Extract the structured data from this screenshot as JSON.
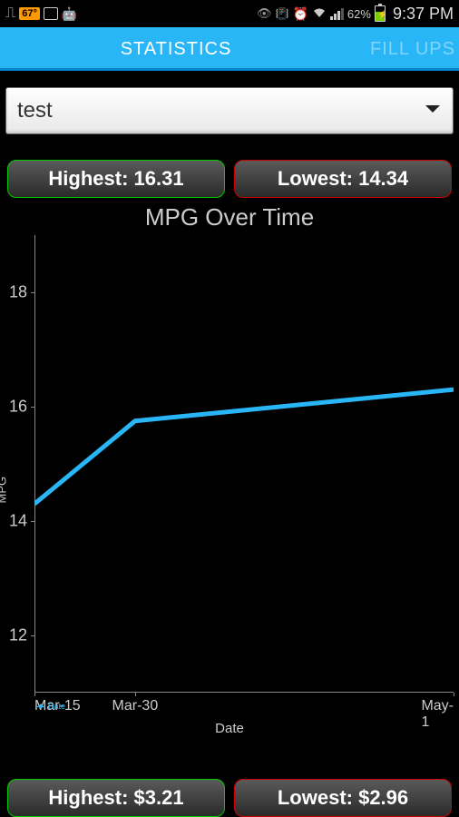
{
  "status": {
    "temp": "67°",
    "battery_pct": "62%",
    "time": "9:37 PM"
  },
  "tabs": {
    "active": "STATISTICS",
    "secondary": "FILL UPS"
  },
  "dropdown": {
    "selected": "test"
  },
  "mpg_stats": {
    "high_label": "Highest: 16.31",
    "low_label": "Lowest: 14.34"
  },
  "price_stats": {
    "high_label": "Highest: $3.21",
    "low_label": "Lowest: $2.96"
  },
  "chart": {
    "type": "line",
    "title": "MPG Over Time",
    "ylabel": "MPG",
    "xlabel": "Date",
    "legend_label": "Date",
    "ylim": [
      11,
      19
    ],
    "yticks": [
      12,
      14,
      16,
      18
    ],
    "xticks": [
      "Mar-15",
      "Mar-30",
      "May-1"
    ],
    "xtick_positions": [
      0.0,
      0.24,
      1.0
    ],
    "points": [
      {
        "x": 0.0,
        "y": 14.3
      },
      {
        "x": 0.24,
        "y": 15.75
      },
      {
        "x": 1.0,
        "y": 16.3
      }
    ],
    "line_color": "#29b6f6",
    "line_width": 5,
    "background_color": "#000000",
    "axis_color": "#888888",
    "text_color": "#cccccc"
  }
}
